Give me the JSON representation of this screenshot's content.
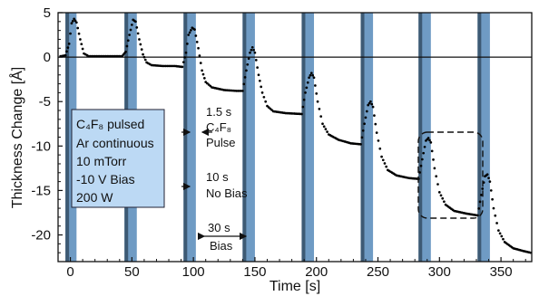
{
  "chart_data": {
    "type": "scatter",
    "xlabel": "Time [s]",
    "ylabel": "Thickness Change [Å]",
    "xlim": [
      -10,
      375
    ],
    "ylim": [
      -23,
      5
    ],
    "xticks": [
      "0",
      "50",
      "100",
      "150",
      "200",
      "250",
      "300",
      "350"
    ],
    "yticks": [
      "5",
      "0",
      "-5",
      "-10",
      "-15",
      "-20"
    ],
    "reference_line_y": 0,
    "colors": {
      "bias_band": "#6f9bc4",
      "bias_dark": "#3d5a74",
      "points": "#000000",
      "textbox": "#bcd9f4"
    },
    "bias_windows": [
      {
        "start": -4,
        "end": 5
      },
      {
        "start": 44,
        "end": 54
      },
      {
        "start": 92,
        "end": 102
      },
      {
        "start": 140,
        "end": 150
      },
      {
        "start": 188,
        "end": 198
      },
      {
        "start": 236,
        "end": 246
      },
      {
        "start": 283,
        "end": 293
      },
      {
        "start": 331,
        "end": 341
      }
    ],
    "series": [
      {
        "points": [
          [
            -8,
            0.1
          ],
          [
            -4,
            0.2
          ],
          [
            -1,
            1.5
          ],
          [
            1,
            3.8
          ],
          [
            3,
            4.3
          ],
          [
            5,
            3.9
          ],
          [
            8,
            2.0
          ],
          [
            11,
            0.4
          ],
          [
            15,
            0.1
          ],
          [
            25,
            0.1
          ],
          [
            35,
            0.1
          ],
          [
            42,
            0.1
          ],
          [
            45,
            0.6
          ],
          [
            48,
            2.5
          ],
          [
            51,
            4.2
          ],
          [
            53,
            4.0
          ],
          [
            56,
            2.0
          ],
          [
            59,
            0.3
          ],
          [
            62,
            -0.6
          ],
          [
            66,
            -0.9
          ],
          [
            75,
            -1.0
          ],
          [
            85,
            -1.0
          ],
          [
            91,
            -1.1
          ],
          [
            94,
            0.5
          ],
          [
            96,
            2.5
          ],
          [
            99,
            3.3
          ],
          [
            101,
            3.1
          ],
          [
            104,
            1.0
          ],
          [
            107,
            -1.5
          ],
          [
            110,
            -2.8
          ],
          [
            115,
            -3.4
          ],
          [
            125,
            -3.7
          ],
          [
            135,
            -3.8
          ],
          [
            140,
            -3.8
          ],
          [
            143,
            -1.5
          ],
          [
            146,
            0.5
          ],
          [
            148,
            1.1
          ],
          [
            150,
            0.5
          ],
          [
            153,
            -2.0
          ],
          [
            156,
            -4.0
          ],
          [
            160,
            -5.5
          ],
          [
            165,
            -6.1
          ],
          [
            175,
            -6.3
          ],
          [
            188,
            -6.4
          ],
          [
            191,
            -4.0
          ],
          [
            194,
            -2.3
          ],
          [
            196,
            -1.8
          ],
          [
            198,
            -2.3
          ],
          [
            201,
            -5.0
          ],
          [
            205,
            -7.5
          ],
          [
            210,
            -8.7
          ],
          [
            218,
            -9.3
          ],
          [
            228,
            -9.7
          ],
          [
            236,
            -9.8
          ],
          [
            239,
            -7.5
          ],
          [
            242,
            -5.4
          ],
          [
            244,
            -5.0
          ],
          [
            246,
            -5.6
          ],
          [
            249,
            -8.5
          ],
          [
            253,
            -11.2
          ],
          [
            258,
            -12.7
          ],
          [
            265,
            -13.3
          ],
          [
            275,
            -13.6
          ],
          [
            283,
            -13.7
          ],
          [
            286,
            -11.5
          ],
          [
            289,
            -9.4
          ],
          [
            291,
            -9.1
          ],
          [
            293,
            -9.6
          ],
          [
            296,
            -12.5
          ],
          [
            300,
            -15.2
          ],
          [
            305,
            -16.6
          ],
          [
            312,
            -17.3
          ],
          [
            322,
            -17.6
          ],
          [
            331,
            -17.8
          ],
          [
            334,
            -15.5
          ],
          [
            337,
            -13.4
          ],
          [
            339,
            -13.2
          ],
          [
            341,
            -14.0
          ],
          [
            344,
            -17.0
          ],
          [
            348,
            -19.5
          ],
          [
            353,
            -20.8
          ],
          [
            360,
            -21.5
          ],
          [
            368,
            -21.8
          ],
          [
            374,
            -22.0
          ]
        ]
      }
    ],
    "annotations": {
      "textbox": [
        "C₄F₈ pulsed",
        "Ar continuous",
        " 10 mTorr",
        "-10 V  Bias",
        "200 W"
      ],
      "pulse_label": [
        "1.5 s",
        "C₄F₈",
        "Pulse"
      ],
      "nobias_label": [
        "10 s",
        "No Bias"
      ],
      "bias_label": [
        "30 s",
        "Bias"
      ]
    },
    "grid": false
  }
}
